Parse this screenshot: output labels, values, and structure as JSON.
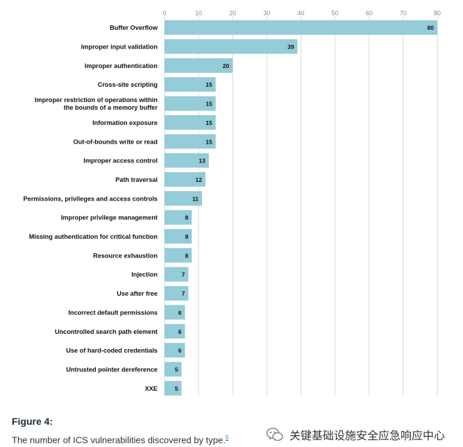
{
  "chart_data": {
    "type": "bar",
    "orientation": "horizontal",
    "title": "",
    "xlabel": "",
    "ylabel": "",
    "xlim": [
      0,
      80
    ],
    "x_ticks": [
      0,
      10,
      20,
      30,
      40,
      50,
      60,
      70,
      80
    ],
    "grid": true,
    "bar_color": "#94ccd8",
    "categories": [
      [
        "Buffer Overflow"
      ],
      [
        "Improper input validation"
      ],
      [
        "Improper authentication"
      ],
      [
        "Cross-site scripting"
      ],
      [
        "Improper restriction of operations within",
        "the bounds of a memory buffer"
      ],
      [
        "Information exposure"
      ],
      [
        "Out-of-bounds write or read"
      ],
      [
        "Improper access control"
      ],
      [
        "Path traversal"
      ],
      [
        "Permissions, privileges and access controls"
      ],
      [
        "Improper privilege management"
      ],
      [
        "Missing authentication for critical function"
      ],
      [
        "Resource exhaustion"
      ],
      [
        "Injection"
      ],
      [
        "Use after free"
      ],
      [
        "Incorrect default permissions"
      ],
      [
        "Uncontrolled search path element"
      ],
      [
        "Use of hard-coded credentials"
      ],
      [
        "Untrusted pointer dereference"
      ],
      [
        "XXE"
      ]
    ],
    "values": [
      80,
      39,
      20,
      15,
      15,
      15,
      15,
      13,
      12,
      11,
      8,
      8,
      8,
      7,
      7,
      6,
      6,
      6,
      5,
      5
    ]
  },
  "caption": {
    "title": "Figure 4:",
    "text": "The number of ICS vulnerabilities discovered by type.",
    "footnote": "5"
  },
  "watermark": {
    "text": "关键基础设施安全应急响应中心",
    "icon": "wechat-official-account-icon"
  }
}
